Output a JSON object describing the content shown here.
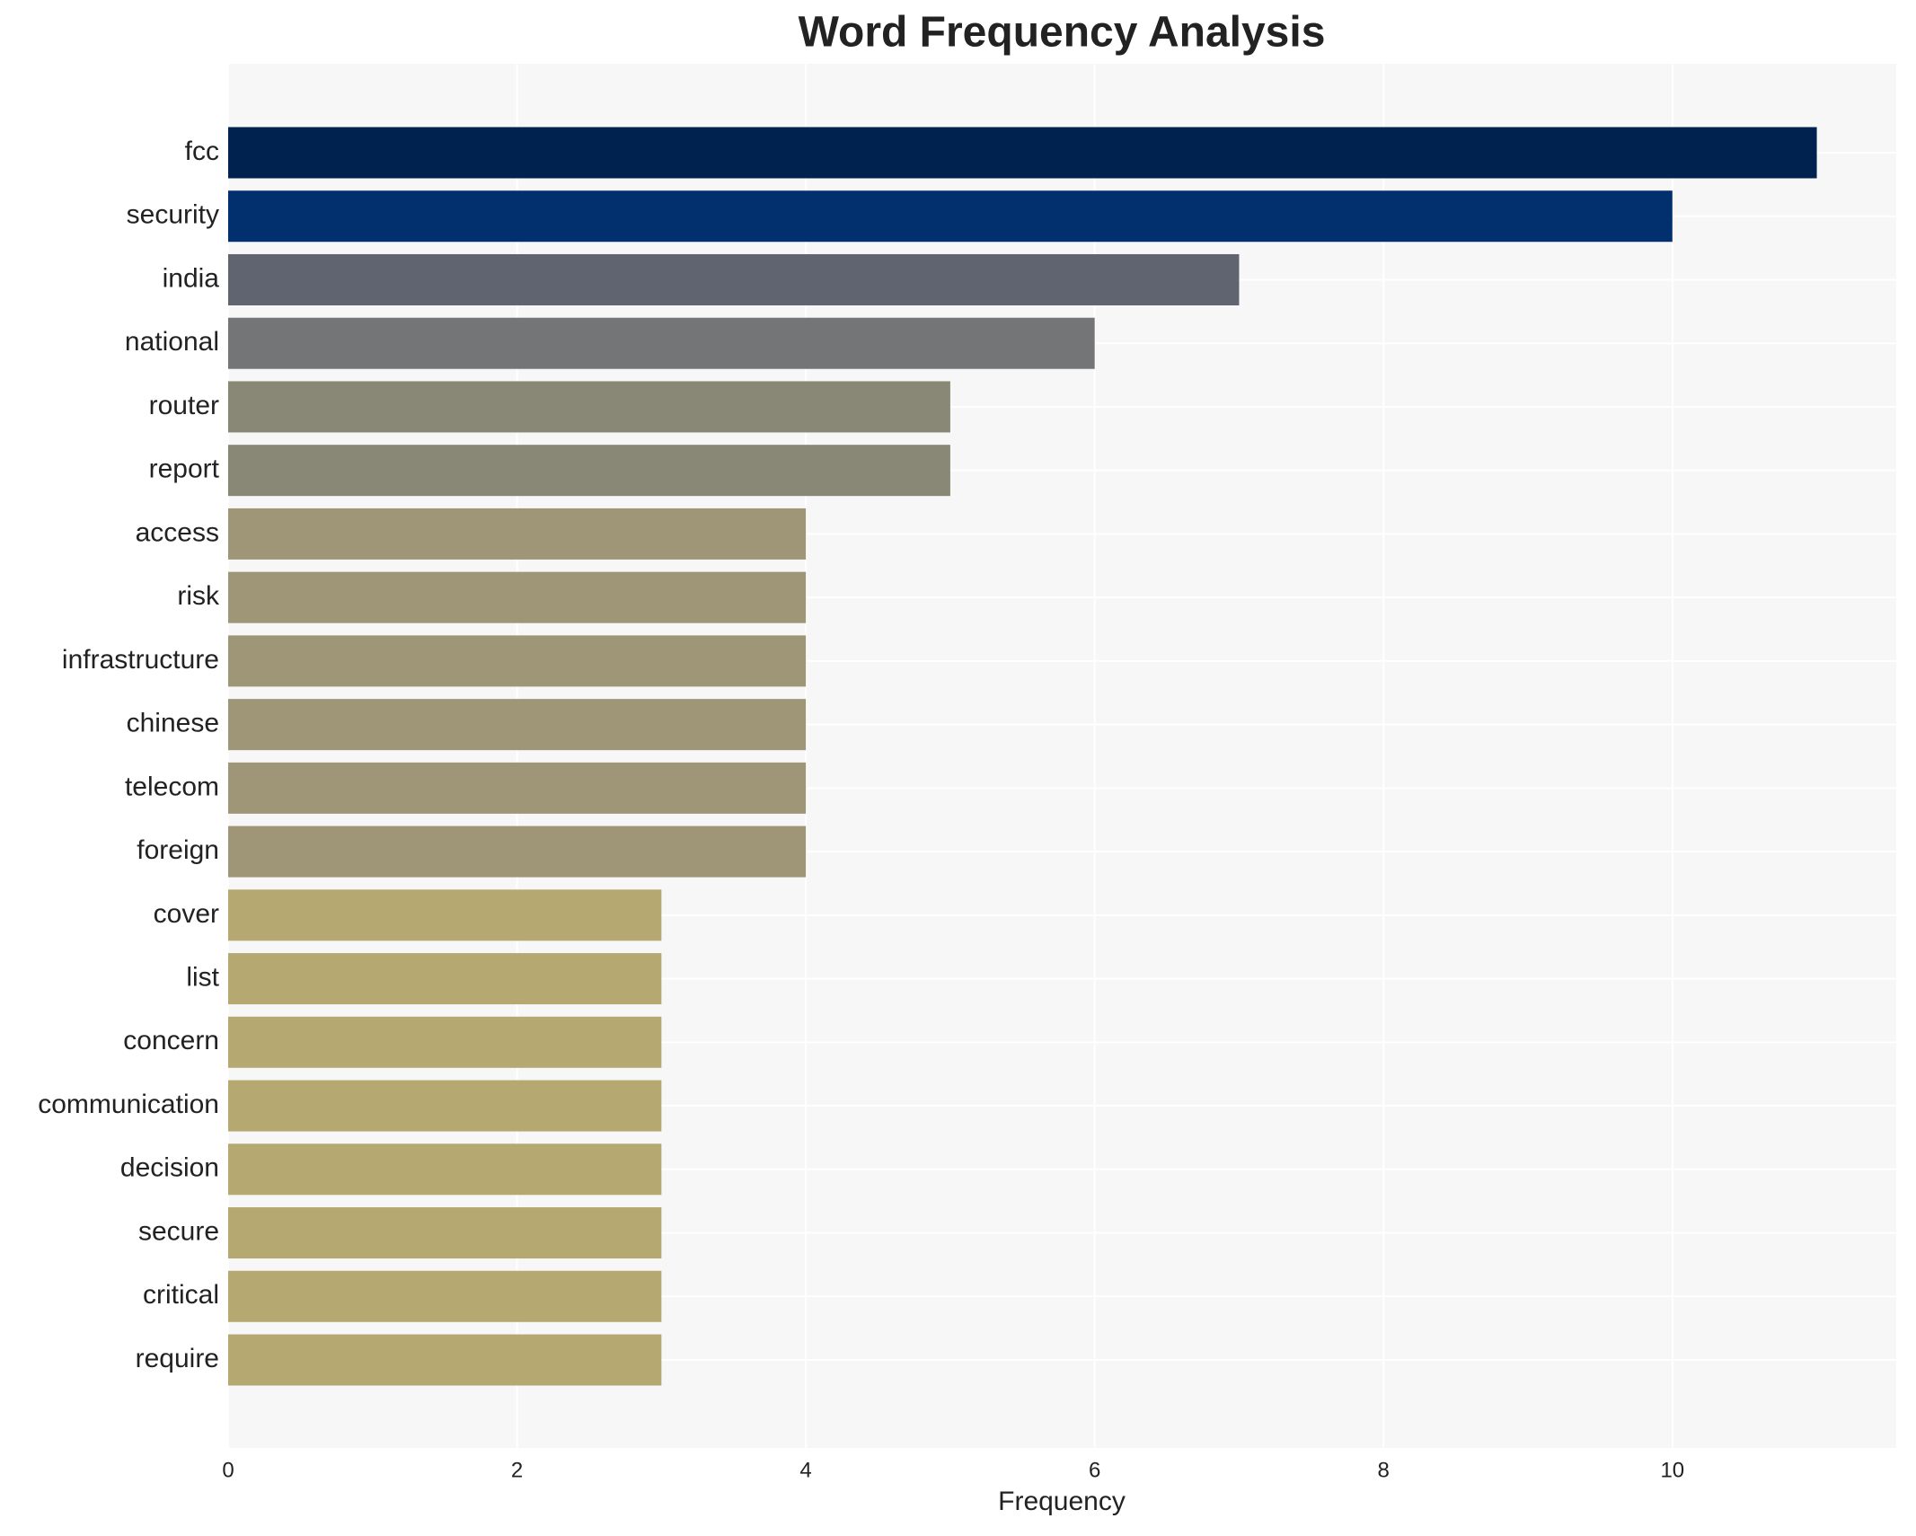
{
  "chart_data": {
    "type": "barh",
    "title": "Word Frequency Analysis",
    "xlabel": "Frequency",
    "categories": [
      "fcc",
      "security",
      "india",
      "national",
      "router",
      "report",
      "access",
      "risk",
      "infrastructure",
      "chinese",
      "telecom",
      "foreign",
      "cover",
      "list",
      "concern",
      "communication",
      "decision",
      "secure",
      "critical",
      "require"
    ],
    "values": [
      11,
      10,
      7,
      6,
      5,
      5,
      4,
      4,
      4,
      4,
      4,
      4,
      3,
      3,
      3,
      3,
      3,
      3,
      3,
      3
    ],
    "colors": [
      "#00224e",
      "#02306f",
      "#5f6470",
      "#747576",
      "#898776",
      "#898776",
      "#9e9677",
      "#9e9677",
      "#9e9677",
      "#9e9677",
      "#9e9677",
      "#9e9677",
      "#b5a971",
      "#b5a971",
      "#b5a971",
      "#b5a971",
      "#b5a971",
      "#b5a971",
      "#b5a971",
      "#b5a971"
    ],
    "xlim": [
      0,
      11.55
    ],
    "xticks": [
      0,
      2,
      4,
      6,
      8,
      10
    ],
    "grid": true
  }
}
